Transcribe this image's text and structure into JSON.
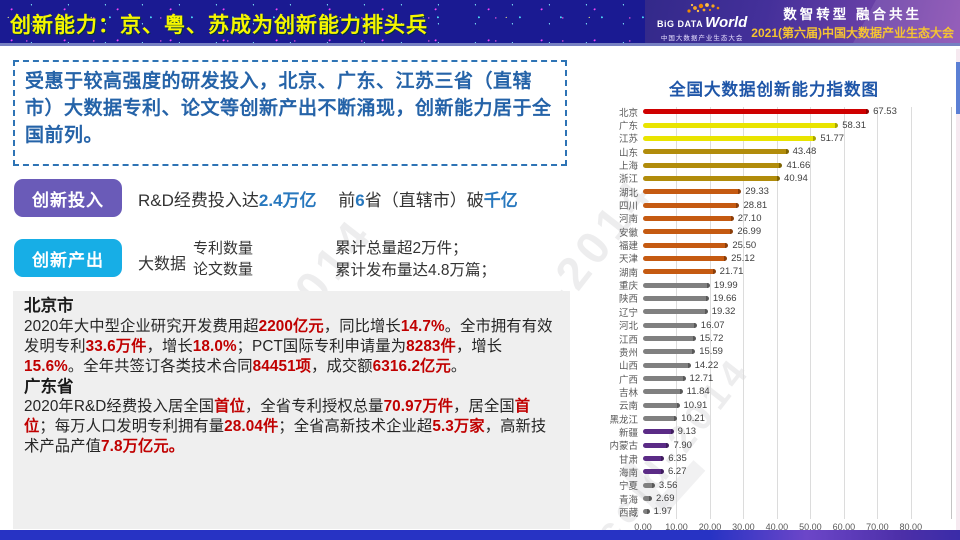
{
  "header": {
    "title": "创新能力：京、粤、苏成为创新能力排头兵",
    "logo": {
      "big": "BiG DATA",
      "world": "World",
      "sub": "中国大数据产业生态大会"
    },
    "slogan": "数智转型  融合共生",
    "conference": "2021(第六届)中国大数据产业生态大会"
  },
  "intro": {
    "text": "受惠于较高强度的研发投入，北京、广东、江苏三省（直辖市）大数据专利、论文等创新产出不断涌现，创新能力居于全国前列。"
  },
  "rows": {
    "investment": {
      "button": "创新投入",
      "runs": [
        {
          "t": "R&D经费投入达"
        },
        {
          "t": "2.4万亿",
          "c": "blue"
        },
        {
          "t": "　  前"
        },
        {
          "t": "6",
          "c": "blue"
        },
        {
          "t": "省（直辖市）破"
        },
        {
          "t": "千亿",
          "c": "blue"
        }
      ]
    },
    "output": {
      "button": "创新产出",
      "label": "大数据",
      "stack1": [
        "专利数量",
        "论文数量"
      ],
      "stack2": [
        "累计总量超2万件；",
        "累计发布量达4.8万篇；"
      ]
    }
  },
  "detail": {
    "beijing_title": "北京市",
    "beijing_runs": [
      {
        "t": "2020年大中型企业研究开发费用超"
      },
      {
        "t": "2200亿元",
        "c": "red"
      },
      {
        "t": "，同比增长"
      },
      {
        "t": "14.7%",
        "c": "red"
      },
      {
        "t": "。全市拥有有效发明专利"
      },
      {
        "t": "33.6万件",
        "c": "red"
      },
      {
        "t": "，增长"
      },
      {
        "t": "18.0%",
        "c": "red"
      },
      {
        "t": "；PCT国际专利申请量为"
      },
      {
        "t": "8283件",
        "c": "red"
      },
      {
        "t": "，增长"
      },
      {
        "t": "15.6%",
        "c": "red"
      },
      {
        "t": "。全年共签订各类技术合同"
      },
      {
        "t": "84451项",
        "c": "red"
      },
      {
        "t": "，成交额"
      },
      {
        "t": "6316.2亿元",
        "c": "red"
      },
      {
        "t": "。"
      }
    ],
    "guangdong_title": "广东省",
    "guangdong_runs": [
      {
        "t": "2020年R&D经费投入居全国"
      },
      {
        "t": "首位",
        "c": "red"
      },
      {
        "t": "，全省专利授权总量"
      },
      {
        "t": "70.97万件",
        "c": "red"
      },
      {
        "t": "，居全国"
      },
      {
        "t": "首位",
        "c": "red"
      },
      {
        "t": "；每万人口发明专利拥有量"
      },
      {
        "t": "28.04件",
        "c": "red"
      },
      {
        "t": "；全省高新技术企业超"
      },
      {
        "t": "5.3万家",
        "c": "red"
      },
      {
        "t": "，高新技术产品产值"
      },
      {
        "t": "7.8万亿元。",
        "c": "red"
      }
    ]
  },
  "chart_data": {
    "type": "bar",
    "orientation": "horizontal",
    "title": "全国大数据创新能力指数图",
    "categories": [
      "北京",
      "广东",
      "江苏",
      "山东",
      "上海",
      "浙江",
      "湖北",
      "四川",
      "河南",
      "安徽",
      "福建",
      "天津",
      "湖南",
      "重庆",
      "陕西",
      "辽宁",
      "河北",
      "江西",
      "贵州",
      "山西",
      "广西",
      "吉林",
      "云南",
      "黑龙江",
      "新疆",
      "内蒙古",
      "甘肃",
      "海南",
      "宁夏",
      "青海",
      "西藏"
    ],
    "values": [
      67.53,
      58.31,
      51.77,
      43.48,
      41.66,
      40.94,
      29.33,
      28.81,
      27.1,
      26.99,
      25.5,
      25.12,
      21.71,
      19.99,
      19.66,
      19.32,
      16.07,
      15.72,
      15.59,
      14.22,
      12.71,
      11.84,
      10.91,
      10.21,
      9.13,
      7.9,
      6.35,
      6.27,
      3.56,
      2.69,
      1.97
    ],
    "colors": [
      {
        "fill": "#CF0000",
        "cap": "#8E0000"
      },
      {
        "fill": "#E9E400",
        "cap": "#A9A600"
      },
      {
        "fill": "#E9E400",
        "cap": "#A9A600"
      },
      {
        "fill": "#B18C0B",
        "cap": "#7E6300"
      },
      {
        "fill": "#B18C0B",
        "cap": "#7E6300"
      },
      {
        "fill": "#B18C0B",
        "cap": "#7E6300"
      },
      {
        "fill": "#C55A11",
        "cap": "#8B3E0A"
      },
      {
        "fill": "#C55A11",
        "cap": "#8B3E0A"
      },
      {
        "fill": "#C55A11",
        "cap": "#8B3E0A"
      },
      {
        "fill": "#C55A11",
        "cap": "#8B3E0A"
      },
      {
        "fill": "#C55A11",
        "cap": "#8B3E0A"
      },
      {
        "fill": "#C55A11",
        "cap": "#8B3E0A"
      },
      {
        "fill": "#C55A11",
        "cap": "#8B3E0A"
      },
      {
        "fill": "#808080",
        "cap": "#595959"
      },
      {
        "fill": "#808080",
        "cap": "#595959"
      },
      {
        "fill": "#808080",
        "cap": "#595959"
      },
      {
        "fill": "#808080",
        "cap": "#595959"
      },
      {
        "fill": "#808080",
        "cap": "#595959"
      },
      {
        "fill": "#808080",
        "cap": "#595959"
      },
      {
        "fill": "#808080",
        "cap": "#595959"
      },
      {
        "fill": "#808080",
        "cap": "#595959"
      },
      {
        "fill": "#808080",
        "cap": "#595959"
      },
      {
        "fill": "#808080",
        "cap": "#595959"
      },
      {
        "fill": "#808080",
        "cap": "#595959"
      },
      {
        "fill": "#5B2B86",
        "cap": "#3F1D5E"
      },
      {
        "fill": "#5B2B86",
        "cap": "#3F1D5E"
      },
      {
        "fill": "#5B2B86",
        "cap": "#3F1D5E"
      },
      {
        "fill": "#5B2B86",
        "cap": "#3F1D5E"
      },
      {
        "fill": "#808080",
        "cap": "#595959"
      },
      {
        "fill": "#808080",
        "cap": "#595959"
      },
      {
        "fill": "#808080",
        "cap": "#595959"
      }
    ],
    "xlabel": "",
    "ylabel": "",
    "xlim": [
      0,
      92
    ],
    "tick_values": [
      0,
      10,
      20,
      30,
      40,
      50,
      60,
      70,
      80
    ],
    "tick_labels": [
      "0.00",
      "10.00",
      "20.00",
      "30.00",
      "40.00",
      "50.00",
      "60.00",
      "70.00",
      "80.00"
    ],
    "grid": true,
    "legend": false
  },
  "watermark": {
    "text": "ccid-2014"
  },
  "accent_colors": {
    "header_bg": "#1A1A92",
    "title_yellow": "#F6F600",
    "intro_blue": "#2563A8",
    "invest_purple": "#6A5BB8",
    "output_cyan": "#17AEE6",
    "highlight_blue": "#2878BE",
    "highlight_red": "#C00000",
    "chart_title_blue": "#1F56A8",
    "conference_gold": "#F6C431"
  }
}
